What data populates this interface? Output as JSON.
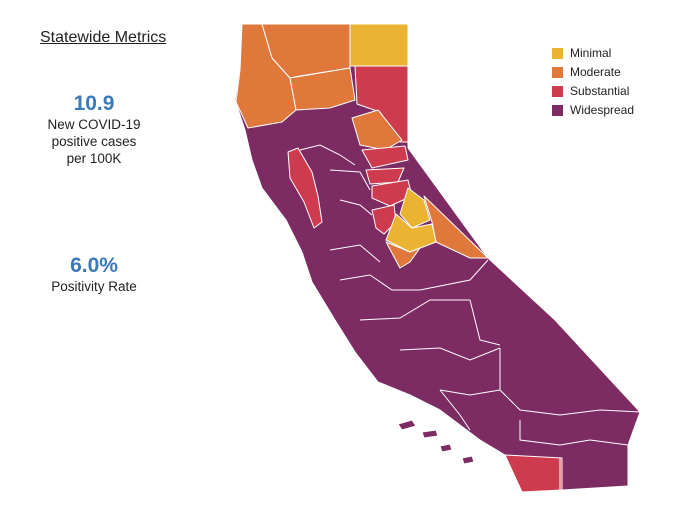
{
  "title": "Statewide Metrics",
  "metrics": {
    "cases": {
      "value": "10.9",
      "label_line1": "New COVID-19",
      "label_line2": "positive cases",
      "label_line3": "per 100K"
    },
    "positivity": {
      "value": "6.0%",
      "label": "Positivity Rate"
    }
  },
  "colors": {
    "accent": "#3a78b7",
    "minimal": "#eab331",
    "moderate": "#e0783c",
    "substantial": "#cf3b4e",
    "widespread": "#7d2b63"
  },
  "legend": {
    "items": [
      {
        "tier": "minimal",
        "label": "Minimal",
        "color": "#eab331"
      },
      {
        "tier": "moderate",
        "label": "Moderate",
        "color": "#e0783c"
      },
      {
        "tier": "substantial",
        "label": "Substantial",
        "color": "#cf3b4e"
      },
      {
        "tier": "widespread",
        "label": "Widespread",
        "color": "#7d2b63"
      }
    ]
  }
}
